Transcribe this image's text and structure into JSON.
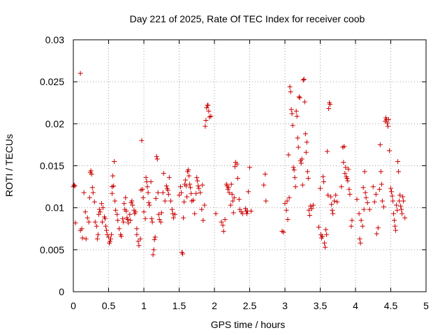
{
  "chart_data": {
    "type": "scatter",
    "title": "Day 221 of 2025, Rate Of TEC Index for receiver coob",
    "xlabel": "GPS time / hours",
    "ylabel": "ROTI / TECUs",
    "xlim": [
      0,
      5
    ],
    "ylim": [
      0,
      0.03
    ],
    "x_ticks": [
      0,
      0.5,
      1,
      1.5,
      2,
      2.5,
      3,
      3.5,
      4,
      4.5,
      5
    ],
    "x_tick_labels": [
      "0",
      "0.5",
      "1",
      "1.5",
      "2",
      "2.5",
      "3",
      "3.5",
      "4",
      "4.5",
      "5"
    ],
    "y_ticks": [
      0,
      0.005,
      0.01,
      0.015,
      0.02,
      0.025,
      0.03
    ],
    "y_tick_labels": [
      "0",
      "0.005",
      "0.01",
      "0.015",
      "0.02",
      "0.025",
      "0.03"
    ],
    "grid": true,
    "marker": "+",
    "color": "#cc0000",
    "points": [
      [
        0.0,
        0.0125
      ],
      [
        0.01,
        0.0127
      ],
      [
        0.02,
        0.0126
      ],
      [
        0.03,
        0.0082
      ],
      [
        0.1,
        0.026
      ],
      [
        0.1,
        0.0073
      ],
      [
        0.12,
        0.0075
      ],
      [
        0.13,
        0.0064
      ],
      [
        0.15,
        0.0118
      ],
      [
        0.17,
        0.0095
      ],
      [
        0.18,
        0.0063
      ],
      [
        0.2,
        0.0088
      ],
      [
        0.22,
        0.0083
      ],
      [
        0.23,
        0.0112
      ],
      [
        0.24,
        0.0142
      ],
      [
        0.25,
        0.0144
      ],
      [
        0.26,
        0.014
      ],
      [
        0.27,
        0.0124
      ],
      [
        0.28,
        0.0118
      ],
      [
        0.3,
        0.0107
      ],
      [
        0.31,
        0.0083
      ],
      [
        0.33,
        0.0078
      ],
      [
        0.34,
        0.0063
      ],
      [
        0.35,
        0.0068
      ],
      [
        0.36,
        0.0092
      ],
      [
        0.37,
        0.0098
      ],
      [
        0.38,
        0.0095
      ],
      [
        0.4,
        0.0105
      ],
      [
        0.41,
        0.0083
      ],
      [
        0.42,
        0.01
      ],
      [
        0.44,
        0.0089
      ],
      [
        0.45,
        0.0087
      ],
      [
        0.46,
        0.0078
      ],
      [
        0.47,
        0.0073
      ],
      [
        0.48,
        0.0068
      ],
      [
        0.5,
        0.0065
      ],
      [
        0.51,
        0.0058
      ],
      [
        0.52,
        0.006
      ],
      [
        0.53,
        0.0063
      ],
      [
        0.54,
        0.0068
      ],
      [
        0.55,
        0.0117
      ],
      [
        0.55,
        0.0125
      ],
      [
        0.56,
        0.0138
      ],
      [
        0.57,
        0.0126
      ],
      [
        0.58,
        0.0155
      ],
      [
        0.59,
        0.0108
      ],
      [
        0.6,
        0.0097
      ],
      [
        0.62,
        0.0092
      ],
      [
        0.63,
        0.0085
      ],
      [
        0.65,
        0.0075
      ],
      [
        0.67,
        0.0068
      ],
      [
        0.68,
        0.0066
      ],
      [
        0.7,
        0.0087
      ],
      [
        0.71,
        0.0083
      ],
      [
        0.72,
        0.0105
      ],
      [
        0.73,
        0.0098
      ],
      [
        0.74,
        0.0112
      ],
      [
        0.75,
        0.0096
      ],
      [
        0.76,
        0.0088
      ],
      [
        0.77,
        0.0086
      ],
      [
        0.78,
        0.0082
      ],
      [
        0.8,
        0.0092
      ],
      [
        0.81,
        0.0085
      ],
      [
        0.82,
        0.0106
      ],
      [
        0.83,
        0.0108
      ],
      [
        0.84,
        0.0103
      ],
      [
        0.86,
        0.0097
      ],
      [
        0.87,
        0.0093
      ],
      [
        0.88,
        0.0095
      ],
      [
        0.9,
        0.0075
      ],
      [
        0.9,
        0.0068
      ],
      [
        0.92,
        0.006
      ],
      [
        0.93,
        0.0055
      ],
      [
        0.95,
        0.0063
      ],
      [
        0.96,
        0.0121
      ],
      [
        0.97,
        0.018
      ],
      [
        0.98,
        0.0122
      ],
      [
        0.99,
        0.0112
      ],
      [
        1.0,
        0.0095
      ],
      [
        1.02,
        0.0087
      ],
      [
        1.03,
        0.0136
      ],
      [
        1.04,
        0.0131
      ],
      [
        1.05,
        0.0125
      ],
      [
        1.06,
        0.0118
      ],
      [
        1.07,
        0.0106
      ],
      [
        1.08,
        0.0103
      ],
      [
        1.1,
        0.0131
      ],
      [
        1.11,
        0.0087
      ],
      [
        1.12,
        0.0083
      ],
      [
        1.13,
        0.0044
      ],
      [
        1.14,
        0.005
      ],
      [
        1.15,
        0.0062
      ],
      [
        1.16,
        0.0065
      ],
      [
        1.17,
        0.0111
      ],
      [
        1.18,
        0.0161
      ],
      [
        1.19,
        0.0158
      ],
      [
        1.2,
        0.0118
      ],
      [
        1.21,
        0.0092
      ],
      [
        1.22,
        0.0086
      ],
      [
        1.24,
        0.0083
      ],
      [
        1.25,
        0.0094
      ],
      [
        1.27,
        0.0118
      ],
      [
        1.28,
        0.0141
      ],
      [
        1.3,
        0.0108
      ],
      [
        1.32,
        0.0126
      ],
      [
        1.33,
        0.0123
      ],
      [
        1.34,
        0.0121
      ],
      [
        1.35,
        0.0116
      ],
      [
        1.36,
        0.0136
      ],
      [
        1.38,
        0.0108
      ],
      [
        1.4,
        0.0098
      ],
      [
        1.41,
        0.0093
      ],
      [
        1.42,
        0.0088
      ],
      [
        1.44,
        0.0092
      ],
      [
        1.5,
        0.0115
      ],
      [
        1.52,
        0.0125
      ],
      [
        1.53,
        0.0118
      ],
      [
        1.54,
        0.0047
      ],
      [
        1.55,
        0.0045
      ],
      [
        1.56,
        0.0088
      ],
      [
        1.57,
        0.0107
      ],
      [
        1.58,
        0.0128
      ],
      [
        1.59,
        0.0133
      ],
      [
        1.6,
        0.0126
      ],
      [
        1.61,
        0.0113
      ],
      [
        1.62,
        0.0143
      ],
      [
        1.63,
        0.0145
      ],
      [
        1.64,
        0.0138
      ],
      [
        1.65,
        0.0128
      ],
      [
        1.66,
        0.0124
      ],
      [
        1.67,
        0.0117
      ],
      [
        1.68,
        0.0108
      ],
      [
        1.7,
        0.0109
      ],
      [
        1.72,
        0.0093
      ],
      [
        1.74,
        0.0117
      ],
      [
        1.75,
        0.0136
      ],
      [
        1.76,
        0.0132
      ],
      [
        1.77,
        0.0126
      ],
      [
        1.78,
        0.0123
      ],
      [
        1.8,
        0.0118
      ],
      [
        1.82,
        0.0098
      ],
      [
        1.83,
        0.0127
      ],
      [
        1.84,
        0.0085
      ],
      [
        1.86,
        0.0103
      ],
      [
        1.87,
        0.0197
      ],
      [
        1.88,
        0.0204
      ],
      [
        1.89,
        0.0219
      ],
      [
        1.9,
        0.0222
      ],
      [
        1.91,
        0.0222
      ],
      [
        1.92,
        0.0215
      ],
      [
        1.93,
        0.0208
      ],
      [
        1.95,
        0.0209
      ],
      [
        2.02,
        0.0093
      ],
      [
        2.1,
        0.0083
      ],
      [
        2.12,
        0.0079
      ],
      [
        2.13,
        0.0072
      ],
      [
        2.15,
        0.0086
      ],
      [
        2.17,
        0.0128
      ],
      [
        2.18,
        0.0126
      ],
      [
        2.19,
        0.0122
      ],
      [
        2.2,
        0.0124
      ],
      [
        2.21,
        0.0118
      ],
      [
        2.23,
        0.0103
      ],
      [
        2.24,
        0.0128
      ],
      [
        2.25,
        0.0116
      ],
      [
        2.26,
        0.0108
      ],
      [
        2.27,
        0.0094
      ],
      [
        2.28,
        0.0112
      ],
      [
        2.29,
        0.0149
      ],
      [
        2.3,
        0.0154
      ],
      [
        2.32,
        0.0152
      ],
      [
        2.33,
        0.0135
      ],
      [
        2.35,
        0.011
      ],
      [
        2.36,
        0.0098
      ],
      [
        2.38,
        0.0095
      ],
      [
        2.4,
        0.0093
      ],
      [
        2.44,
        0.0099
      ],
      [
        2.45,
        0.0096
      ],
      [
        2.46,
        0.0093
      ],
      [
        2.47,
        0.0096
      ],
      [
        2.48,
        0.0119
      ],
      [
        2.5,
        0.0148
      ],
      [
        2.52,
        0.0096
      ],
      [
        2.7,
        0.0127
      ],
      [
        2.72,
        0.014
      ],
      [
        2.73,
        0.0108
      ],
      [
        2.96,
        0.0072
      ],
      [
        2.98,
        0.0071
      ],
      [
        3.0,
        0.0105
      ],
      [
        3.02,
        0.0097
      ],
      [
        3.03,
        0.0108
      ],
      [
        3.04,
        0.0086
      ],
      [
        3.05,
        0.0163
      ],
      [
        3.06,
        0.0112
      ],
      [
        3.07,
        0.0244
      ],
      [
        3.08,
        0.0238
      ],
      [
        3.09,
        0.0217
      ],
      [
        3.1,
        0.0212
      ],
      [
        3.11,
        0.0198
      ],
      [
        3.12,
        0.0148
      ],
      [
        3.13,
        0.0145
      ],
      [
        3.14,
        0.0136
      ],
      [
        3.15,
        0.0125
      ],
      [
        3.16,
        0.0215
      ],
      [
        3.17,
        0.0209
      ],
      [
        3.18,
        0.0183
      ],
      [
        3.19,
        0.0172
      ],
      [
        3.2,
        0.0232
      ],
      [
        3.21,
        0.0231
      ],
      [
        3.22,
        0.0156
      ],
      [
        3.23,
        0.0153
      ],
      [
        3.24,
        0.0158
      ],
      [
        3.25,
        0.0127
      ],
      [
        3.26,
        0.0252
      ],
      [
        3.27,
        0.0253
      ],
      [
        3.28,
        0.0226
      ],
      [
        3.29,
        0.0188
      ],
      [
        3.3,
        0.0166
      ],
      [
        3.31,
        0.0178
      ],
      [
        3.32,
        0.0143
      ],
      [
        3.33,
        0.0135
      ],
      [
        3.34,
        0.0097
      ],
      [
        3.35,
        0.0091
      ],
      [
        3.36,
        0.0102
      ],
      [
        3.38,
        0.0099
      ],
      [
        3.4,
        0.0103
      ],
      [
        3.48,
        0.0077
      ],
      [
        3.5,
        0.0123
      ],
      [
        3.51,
        0.0068
      ],
      [
        3.52,
        0.0064
      ],
      [
        3.53,
        0.0066
      ],
      [
        3.54,
        0.0137
      ],
      [
        3.55,
        0.0131
      ],
      [
        3.56,
        0.0058
      ],
      [
        3.57,
        0.0053
      ],
      [
        3.58,
        0.0074
      ],
      [
        3.59,
        0.0068
      ],
      [
        3.6,
        0.0167
      ],
      [
        3.61,
        0.0115
      ],
      [
        3.62,
        0.0218
      ],
      [
        3.63,
        0.0225
      ],
      [
        3.64,
        0.0223
      ],
      [
        3.65,
        0.0113
      ],
      [
        3.66,
        0.0104
      ],
      [
        3.67,
        0.0097
      ],
      [
        3.68,
        0.0093
      ],
      [
        3.7,
        0.0108
      ],
      [
        3.72,
        0.0115
      ],
      [
        3.74,
        0.0107
      ],
      [
        3.8,
        0.0125
      ],
      [
        3.82,
        0.0172
      ],
      [
        3.83,
        0.0154
      ],
      [
        3.84,
        0.0173
      ],
      [
        3.85,
        0.0141
      ],
      [
        3.86,
        0.0148
      ],
      [
        3.87,
        0.0137
      ],
      [
        3.88,
        0.0135
      ],
      [
        3.89,
        0.0132
      ],
      [
        3.9,
        0.0146
      ],
      [
        3.91,
        0.0122
      ],
      [
        3.92,
        0.0116
      ],
      [
        3.94,
        0.0078
      ],
      [
        3.95,
        0.0085
      ],
      [
        4.02,
        0.011
      ],
      [
        4.05,
        0.0093
      ],
      [
        4.06,
        0.0063
      ],
      [
        4.07,
        0.0058
      ],
      [
        4.08,
        0.0085
      ],
      [
        4.1,
        0.0078
      ],
      [
        4.11,
        0.0124
      ],
      [
        4.12,
        0.0098
      ],
      [
        4.13,
        0.0143
      ],
      [
        4.14,
        0.0118
      ],
      [
        4.15,
        0.0112
      ],
      [
        4.17,
        0.0106
      ],
      [
        4.2,
        0.0098
      ],
      [
        4.25,
        0.0125
      ],
      [
        4.27,
        0.0107
      ],
      [
        4.29,
        0.0116
      ],
      [
        4.3,
        0.0069
      ],
      [
        4.32,
        0.0076
      ],
      [
        4.34,
        0.0122
      ],
      [
        4.35,
        0.0175
      ],
      [
        4.36,
        0.0143
      ],
      [
        4.37,
        0.0128
      ],
      [
        4.38,
        0.0108
      ],
      [
        4.4,
        0.0101
      ],
      [
        4.42,
        0.0203
      ],
      [
        4.43,
        0.0207
      ],
      [
        4.44,
        0.0205
      ],
      [
        4.45,
        0.0201
      ],
      [
        4.46,
        0.0197
      ],
      [
        4.47,
        0.0205
      ],
      [
        4.48,
        0.0168
      ],
      [
        4.5,
        0.0123
      ],
      [
        4.51,
        0.0119
      ],
      [
        4.52,
        0.0114
      ],
      [
        4.53,
        0.0108
      ],
      [
        4.54,
        0.0093
      ],
      [
        4.55,
        0.0085
      ],
      [
        4.56,
        0.0078
      ],
      [
        4.57,
        0.0073
      ],
      [
        4.58,
        0.0103
      ],
      [
        4.59,
        0.0097
      ],
      [
        4.6,
        0.0155
      ],
      [
        4.61,
        0.0143
      ],
      [
        4.62,
        0.0108
      ],
      [
        4.63,
        0.0115
      ],
      [
        4.64,
        0.0102
      ],
      [
        4.65,
        0.0098
      ],
      [
        4.66,
        0.0093
      ],
      [
        4.67,
        0.0113
      ],
      [
        4.68,
        0.0108
      ],
      [
        4.7,
        0.0088
      ]
    ]
  }
}
